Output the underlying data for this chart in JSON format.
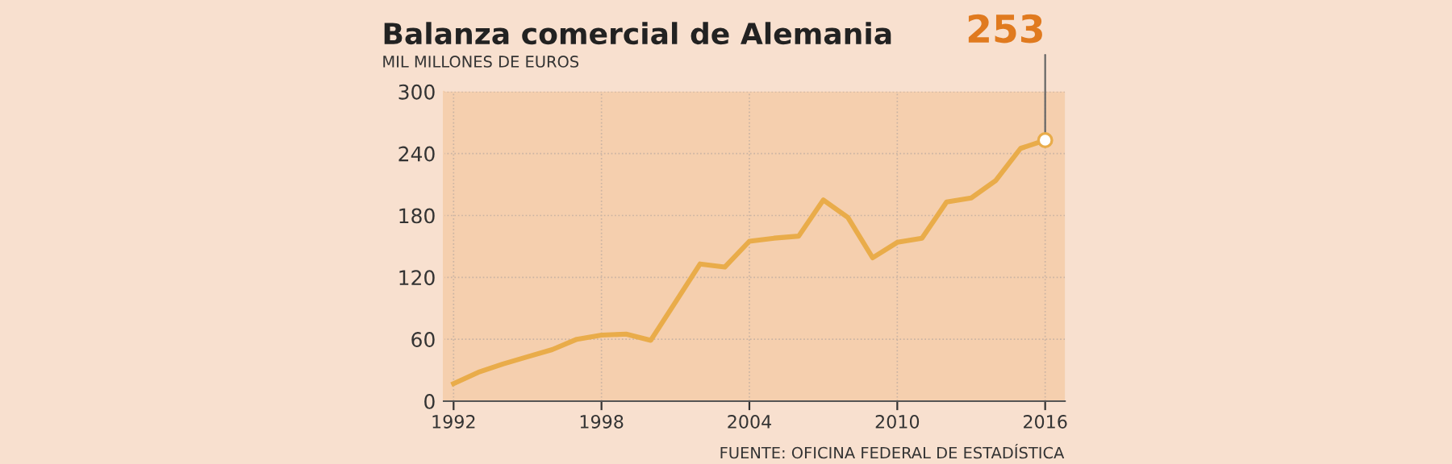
{
  "chart_data": {
    "type": "line",
    "title": "Balanza comercial de Alemania",
    "subtitle": "MIL MILLONES DE EUROS",
    "x": [
      1992,
      1993,
      1994,
      1995,
      1996,
      1997,
      1998,
      1999,
      2000,
      2001,
      2002,
      2003,
      2004,
      2005,
      2006,
      2007,
      2008,
      2009,
      2010,
      2011,
      2012,
      2013,
      2014,
      2015,
      2016
    ],
    "series": [
      {
        "color": "#e9ac4a",
        "values": [
          17,
          28,
          36,
          43,
          50,
          60,
          64,
          65,
          59,
          96,
          133,
          130,
          155,
          158,
          160,
          195,
          178,
          139,
          154,
          158,
          193,
          197,
          214,
          245,
          253
        ]
      }
    ],
    "xlim": [
      1991.6,
      2016.8
    ],
    "xticks": [
      1992,
      1998,
      2004,
      2010,
      2016
    ],
    "ylim": [
      0,
      300
    ],
    "yticks": [
      0,
      60,
      120,
      180,
      240,
      300
    ],
    "grid": true,
    "marker": "none",
    "line_style": "solid",
    "annotations": [
      {
        "text": "253",
        "x": 2016,
        "y": 253
      },
      "FUENTE: OFICINA FEDERAL DE ESTADÍSTICA"
    ]
  }
}
